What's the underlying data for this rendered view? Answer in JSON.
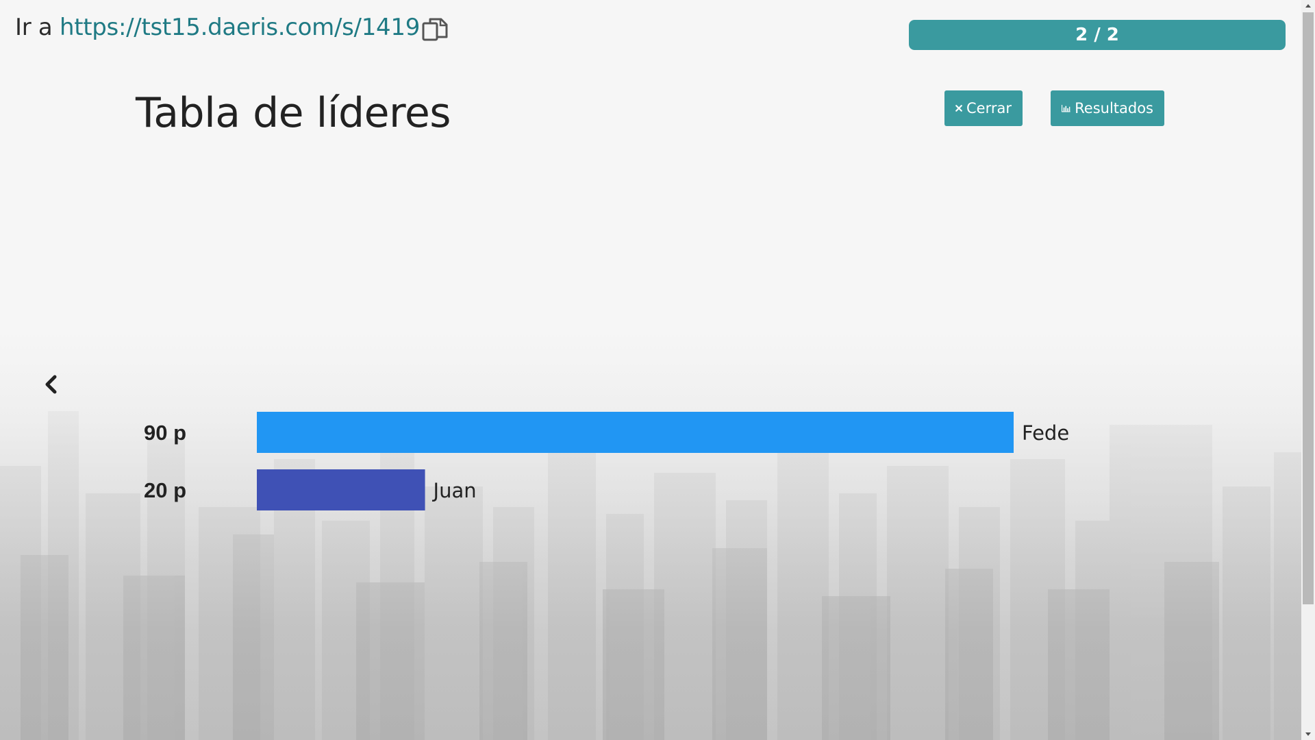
{
  "header": {
    "join_prefix": "Ir a",
    "join_url": "https://tst15.daeris.com/s/1419",
    "copy_icon": "copy-icon"
  },
  "progress": {
    "label": "2 / 2",
    "fraction": 1.0
  },
  "page": {
    "title": "Tabla de líderes"
  },
  "buttons": {
    "close_label": "Cerrar",
    "close_icon": "times-icon",
    "results_label": "Resultados",
    "results_icon": "bar-chart-icon"
  },
  "nav": {
    "back_icon": "chevron-left-icon"
  },
  "colors": {
    "accent": "#3a9a9f",
    "bar_first": "#2196f3",
    "bar_second": "#3f51b5"
  },
  "chart_data": {
    "type": "bar",
    "orientation": "horizontal",
    "categories": [
      "Fede",
      "Juan"
    ],
    "values": [
      90,
      20
    ],
    "value_labels": [
      "90 p",
      "20 p"
    ],
    "xlim": [
      0,
      90
    ]
  }
}
